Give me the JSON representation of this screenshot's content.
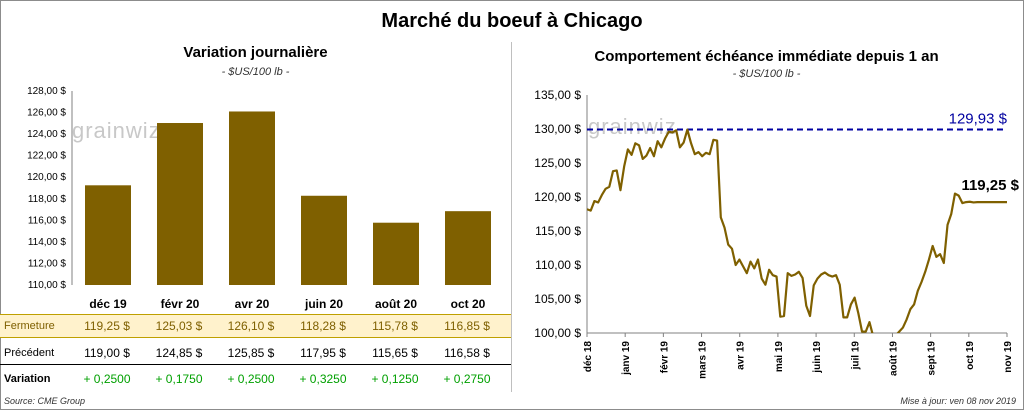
{
  "title": "Marché du boeuf à Chicago",
  "left": {
    "title": "Variation journalière",
    "units": "- $US/100 lb -"
  },
  "right": {
    "title": "Comportement échéance immédiate depuis 1 an",
    "units": "- $US/100 lb -"
  },
  "watermark": "grainwiz",
  "table": {
    "fermeture_label": "Fermeture",
    "precedent_label": "Précédent",
    "variation_label": "Variation",
    "fermeture": [
      "119,25 $",
      "125,03 $",
      "126,10 $",
      "118,28 $",
      "115,78 $",
      "116,85 $"
    ],
    "precedent": [
      "119,00 $",
      "124,85 $",
      "125,85 $",
      "117,95 $",
      "115,65 $",
      "116,58 $"
    ],
    "variation": [
      "+ 0,2500",
      "+ 0,1750",
      "+ 0,2500",
      "+ 0,3250",
      "+ 0,1250",
      "+ 0,2750"
    ]
  },
  "footer": {
    "source": "Source: CME Group",
    "updated": "Mise à jour: ven 08 nov 2019"
  },
  "colors": {
    "bar": "#7f6000",
    "line": "#7f6000",
    "ref_line": "#0000a0",
    "fermeture_bg": "#fff2cc",
    "variation_text": "#00a000"
  },
  "chart_data": [
    {
      "type": "bar",
      "categories": [
        "déc 19",
        "févr 20",
        "avr 20",
        "juin 20",
        "août 20",
        "oct 20"
      ],
      "values": [
        119.25,
        125.03,
        126.1,
        118.28,
        115.78,
        116.85
      ],
      "ylim": [
        110,
        128
      ],
      "yticks": [
        "110,00 $",
        "112,00 $",
        "114,00 $",
        "116,00 $",
        "118,00 $",
        "120,00 $",
        "122,00 $",
        "124,00 $",
        "126,00 $",
        "128,00 $"
      ],
      "grid": false
    },
    {
      "type": "line",
      "xticks": [
        "déc 18",
        "janv 19",
        "févr 19",
        "mars 19",
        "avr 19",
        "mai 19",
        "juin 19",
        "juil 19",
        "août 19",
        "sept 19",
        "oct 19",
        "nov 19"
      ],
      "ylim": [
        100,
        135
      ],
      "yticks": [
        "100,00 $",
        "105,00 $",
        "110,00 $",
        "115,00 $",
        "120,00 $",
        "125,00 $",
        "130,00 $",
        "135,00 $"
      ],
      "reference_line": {
        "value": 129.93,
        "label": "129,93 $"
      },
      "last_label": "119,25 $",
      "x_days": [
        0,
        3,
        6,
        9,
        12,
        15,
        18,
        21,
        24,
        27,
        30,
        33,
        36,
        39,
        42,
        45,
        48,
        51,
        54,
        57,
        60,
        63,
        66,
        69,
        72,
        75,
        78,
        81,
        84,
        87,
        90,
        93,
        96,
        99,
        102,
        105,
        108,
        111,
        114,
        117,
        120,
        123,
        126,
        129,
        132,
        135,
        138,
        141,
        144,
        147,
        150,
        153,
        156,
        159,
        162,
        165,
        168,
        171,
        174,
        177,
        180,
        183,
        186,
        189,
        192,
        195,
        198,
        201,
        204,
        207,
        210,
        213,
        216,
        219,
        222,
        225,
        228,
        231,
        234,
        237,
        240,
        243,
        246,
        249,
        252,
        255,
        258,
        261,
        264,
        267,
        270,
        273,
        276,
        279,
        282,
        285,
        288,
        291,
        294,
        297,
        300,
        303,
        306,
        309,
        312,
        315,
        318,
        321,
        324,
        327,
        330,
        333,
        336,
        339
      ],
      "values": [
        118.2,
        118.0,
        119.4,
        119.2,
        120.3,
        121.2,
        121.5,
        123.8,
        123.9,
        121.0,
        124.5,
        127.0,
        126.2,
        127.9,
        127.6,
        125.6,
        126.1,
        127.2,
        126.0,
        128.2,
        127.3,
        128.6,
        129.6,
        129.5,
        129.8,
        127.3,
        128.0,
        129.9,
        127.9,
        126.3,
        126.6,
        126.0,
        126.5,
        126.3,
        128.4,
        128.3,
        117.0,
        115.5,
        113.0,
        112.4,
        110.0,
        110.8,
        109.8,
        108.8,
        110.5,
        109.5,
        110.8,
        108.0,
        107.1,
        109.3,
        108.5,
        108.3,
        102.4,
        102.5,
        108.8,
        108.4,
        108.6,
        109.0,
        108.1,
        104.0,
        102.5,
        107.0,
        108.0,
        108.6,
        108.9,
        108.5,
        108.3,
        108.5,
        107.1,
        102.3,
        102.3,
        104.2,
        105.2,
        102.9,
        100.2,
        100.2,
        101.6,
        99.5,
        99.0,
        99.0,
        99.2,
        98.8,
        99.3,
        99.6,
        100.2,
        100.8,
        102.0,
        103.5,
        104.2,
        106.2,
        107.5,
        109.0,
        110.8,
        112.8,
        111.2,
        111.6,
        110.3,
        115.9,
        117.5,
        120.5,
        120.2,
        119.1,
        119.25,
        119.3,
        119.2,
        119.25,
        119.25,
        119.25,
        119.25,
        119.25,
        119.25,
        119.25,
        119.25,
        119.25
      ]
    }
  ]
}
